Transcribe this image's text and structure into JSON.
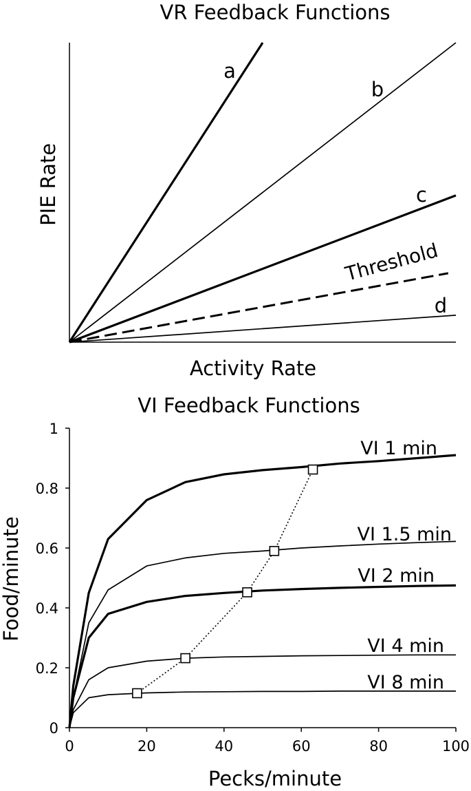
{
  "chart_data": [
    {
      "type": "line",
      "title": "VR Feedback Functions",
      "xlabel": "Activity Rate",
      "ylabel": "PIE Rate",
      "grid": false,
      "xlim": [
        0,
        1
      ],
      "ylim": [
        0,
        1
      ],
      "series": [
        {
          "name": "a",
          "line_style": "thick",
          "x": [
            0,
            0.5
          ],
          "y": [
            0,
            1.0
          ]
        },
        {
          "name": "b",
          "line_style": "thin",
          "x": [
            0,
            1.0
          ],
          "y": [
            0,
            1.0
          ]
        },
        {
          "name": "c",
          "line_style": "thick",
          "x": [
            0,
            1.0
          ],
          "y": [
            0,
            0.49
          ]
        },
        {
          "name": "Threshold",
          "line_style": "dashed",
          "x": [
            0,
            0.98
          ],
          "y": [
            0,
            0.23
          ]
        },
        {
          "name": "d",
          "line_style": "thin",
          "x": [
            0,
            1.0
          ],
          "y": [
            0,
            0.09
          ]
        }
      ]
    },
    {
      "type": "line",
      "title": "VI Feedback Functions",
      "xlabel": "Pecks/minute",
      "ylabel": "Food/minute",
      "grid": false,
      "xlim": [
        0,
        100
      ],
      "ylim": [
        0,
        1
      ],
      "xticks": [
        0,
        20,
        40,
        60,
        80,
        100
      ],
      "yticks": [
        0,
        0.2,
        0.4,
        0.6,
        0.8,
        1
      ],
      "ytick_labels": [
        "0",
        "0.2",
        "0.4",
        "0.6",
        "0.8",
        "1"
      ],
      "series": [
        {
          "name": "VI 1 min",
          "line_style": "thick",
          "x": [
            1,
            5,
            10,
            20,
            30,
            40,
            50,
            60,
            70,
            80,
            90,
            100
          ],
          "y": [
            0.14,
            0.45,
            0.63,
            0.76,
            0.82,
            0.846,
            0.86,
            0.87,
            0.882,
            0.89,
            0.9,
            0.91
          ]
        },
        {
          "name": "VI 1.5 min",
          "line_style": "thin",
          "x": [
            1,
            5,
            10,
            20,
            30,
            40,
            50,
            60,
            70,
            80,
            90,
            100
          ],
          "y": [
            0.1,
            0.35,
            0.46,
            0.54,
            0.567,
            0.582,
            0.59,
            0.6,
            0.607,
            0.613,
            0.618,
            0.622
          ]
        },
        {
          "name": "VI 2 min",
          "line_style": "thick",
          "x": [
            1,
            5,
            10,
            20,
            30,
            40,
            50,
            60,
            70,
            80,
            90,
            100
          ],
          "y": [
            0.1,
            0.3,
            0.38,
            0.42,
            0.44,
            0.45,
            0.458,
            0.463,
            0.467,
            0.47,
            0.473,
            0.475
          ]
        },
        {
          "name": "VI 4 min",
          "line_style": "thin",
          "x": [
            1,
            5,
            10,
            20,
            30,
            40,
            50,
            60,
            70,
            80,
            90,
            100
          ],
          "y": [
            0.06,
            0.16,
            0.2,
            0.222,
            0.232,
            0.236,
            0.238,
            0.24,
            0.241,
            0.242,
            0.243,
            0.243
          ]
        },
        {
          "name": "VI 8 min",
          "line_style": "thin",
          "x": [
            1,
            5,
            10,
            20,
            30,
            40,
            50,
            60,
            70,
            80,
            90,
            100
          ],
          "y": [
            0.05,
            0.1,
            0.11,
            0.116,
            0.119,
            0.12,
            0.121,
            0.121,
            0.122,
            0.122,
            0.122,
            0.122
          ]
        }
      ],
      "equilibrium_points": {
        "line_style": "dotted",
        "x": [
          17.5,
          30,
          46,
          53,
          63
        ],
        "y": [
          0.115,
          0.232,
          0.452,
          0.59,
          0.862
        ]
      }
    }
  ]
}
